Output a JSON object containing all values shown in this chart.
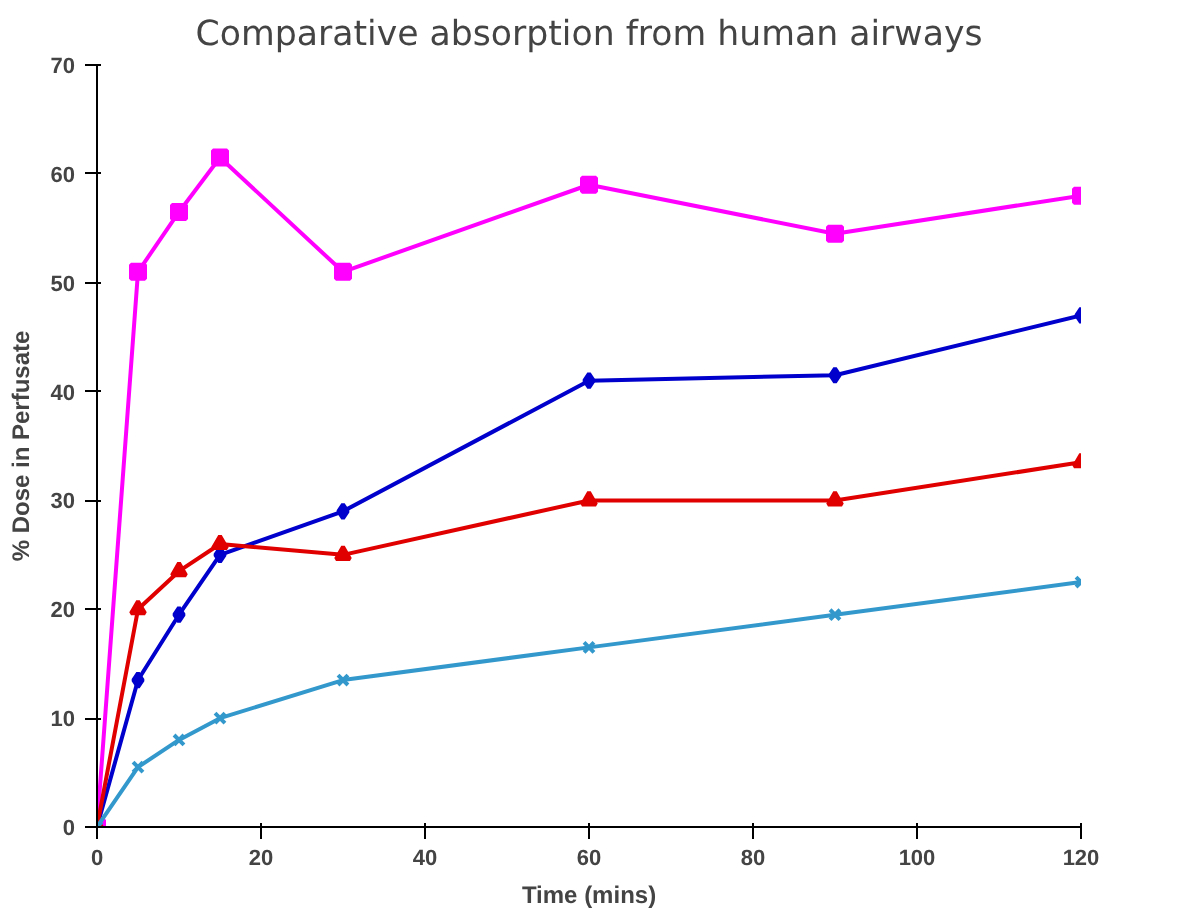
{
  "chart_data": {
    "type": "line",
    "title": "Comparative absorption from human airways",
    "xlabel": "Time (mins)",
    "ylabel": "% Dose in Perfusate",
    "x": [
      0,
      5,
      10,
      15,
      30,
      60,
      90,
      120
    ],
    "xlim": [
      0,
      120
    ],
    "xticks": [
      0,
      20,
      40,
      60,
      80,
      100,
      120
    ],
    "ylim": [
      0,
      70
    ],
    "yticks": [
      0,
      10,
      20,
      30,
      40,
      50,
      60,
      70
    ],
    "grid": false,
    "line_style": "solid",
    "series": [
      {
        "color": "#ff00ff",
        "marker": "square",
        "values": [
          0,
          51,
          56.5,
          61.5,
          51,
          59,
          54.5,
          58
        ]
      },
      {
        "color": "#0000cc",
        "marker": "diamond",
        "values": [
          0,
          13.5,
          19.5,
          25,
          29,
          41,
          41.5,
          47
        ]
      },
      {
        "color": "#e00000",
        "marker": "triangle",
        "values": [
          0,
          20,
          23.5,
          26,
          25,
          30,
          30,
          33.5
        ]
      },
      {
        "color": "#3399cc",
        "marker": "cross",
        "values": [
          0,
          5.5,
          8,
          10,
          13.5,
          16.5,
          19.5,
          22.5
        ]
      }
    ]
  }
}
